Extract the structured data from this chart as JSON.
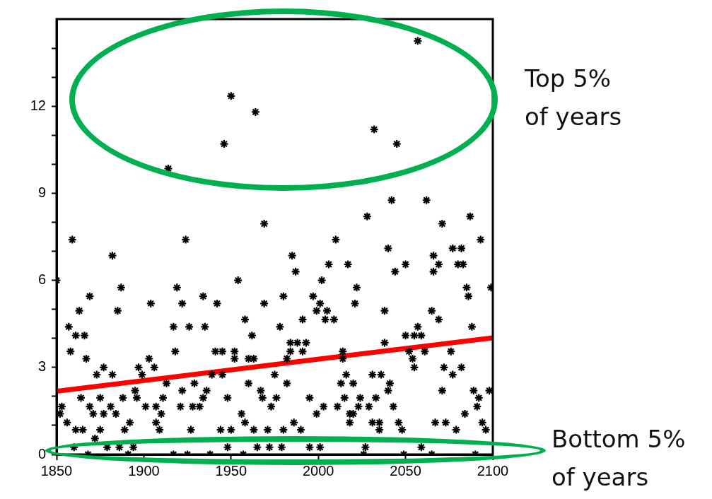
{
  "chart_data": {
    "type": "scatter",
    "xlim": [
      1850,
      2100
    ],
    "xticks": [
      1850,
      1900,
      1950,
      2000,
      2050,
      {
        "value": 2100,
        "label": "2100"
      }
    ],
    "ylim": [
      0,
      15
    ],
    "yticks": [
      0,
      {
        "value": 1,
        "label": null
      },
      {
        "value": 2,
        "label": null
      },
      3,
      {
        "value": 4,
        "label": null
      },
      {
        "value": 5,
        "label": null
      },
      6,
      {
        "value": 7,
        "label": null
      },
      {
        "value": 8,
        "label": null
      },
      9,
      {
        "value": 10,
        "label": null
      },
      {
        "value": 11,
        "label": null
      },
      12,
      {
        "value": 13,
        "label": null
      },
      {
        "value": 14,
        "label": null
      }
    ],
    "grid": false,
    "legend": false,
    "annotations": [
      "Top 5% of years",
      "Bottom 5% of years"
    ],
    "series": [
      {
        "type": "scatter",
        "marker": "cross",
        "color": "#000000",
        "x": [
          1914,
          1946,
          1950,
          1964,
          2032,
          2045,
          2057,
          2042,
          2062,
          2087,
          2028,
          1969,
          1859,
          1924,
          2010,
          2093,
          2071,
          2077,
          2082,
          1882,
          1985,
          2040,
          2066,
          1987,
          2006,
          2017,
          2050,
          2044,
          2080,
          2083,
          2066,
          1887,
          1919,
          1869,
          1934,
          1980,
          1954,
          1942,
          2002,
          1969,
          1997,
          2001,
          1999,
          2005,
          2004,
          2009,
          1991,
          1958,
          1962,
          1978,
          1935,
          1941,
          1945,
          1952,
          1952,
          1960,
          1963,
          1984,
          1988,
          1993,
          1984,
          1991,
          1982,
          2014,
          2014,
          1939,
          1945,
          1936,
          1934,
          1948,
          1960,
          1967,
          1968,
          1976,
          1973,
          1975,
          1982,
          1995,
          2003,
          1999,
          2011,
          2015,
          2013,
          2016,
          2018,
          2018,
          1956,
          1958,
          1944,
          1950,
          1963,
          1971,
          1980,
          1986,
          1990,
          1948,
          1965,
          1972,
          1979,
          1995,
          2001,
          1938,
          1957,
          1885,
          1863,
          1857,
          1861,
          1866,
          1858,
          1867,
          1904,
          1922,
          1917,
          1926,
          1918,
          1877,
          1873,
          1882,
          1897,
          1899,
          1903,
          1906,
          1913,
          1929,
          1895,
          1922,
          1853,
          1852,
          1856,
          1864,
          1875,
          1869,
          1871,
          1877,
          1884,
          1881,
          1888,
          1896,
          1901,
          1907,
          1911,
          1910,
          1907,
          1921,
          1928,
          1932,
          1861,
          1865,
          1875,
          1889,
          1892,
          1909,
          1927,
          1872,
          1879,
          1886,
          1894,
          1860,
          1868,
          1891,
          1917,
          1925,
          2022,
          2085,
          2086,
          2099,
          2021,
          2038,
          2065,
          2069,
          2088,
          2057,
          2050,
          2055,
          2059,
          2038,
          2052,
          2054,
          2055,
          2061,
          2076,
          2072,
          2082,
          2077,
          2031,
          2036,
          2041,
          2040,
          2020,
          2071,
          2089,
          2092,
          2091,
          2098,
          2024,
          2033,
          2023,
          2029,
          2043,
          2020,
          2084,
          2031,
          2035,
          2035,
          2046,
          2048,
          2067,
          2073,
          2079,
          2094,
          2096,
          2027,
          2059,
          2026,
          2049,
          2065,
          2090,
          2069,
          1850
        ],
        "values": [
          9.85,
          10.7,
          12.35,
          11.8,
          11.2,
          10.7,
          14.25,
          8.76,
          8.76,
          8.2,
          8.2,
          7.95,
          7.4,
          7.4,
          7.4,
          7.4,
          7.95,
          7.1,
          7.1,
          6.85,
          6.85,
          7.1,
          6.85,
          6.3,
          6.55,
          6.55,
          6.55,
          6.3,
          6.55,
          6.55,
          6.3,
          5.75,
          5.75,
          5.45,
          5.45,
          5.45,
          6.0,
          5.2,
          6.0,
          5.2,
          5.45,
          5.2,
          4.95,
          4.95,
          4.65,
          4.65,
          4.65,
          4.65,
          4.1,
          4.4,
          4.4,
          3.55,
          3.55,
          3.55,
          3.3,
          3.3,
          3.3,
          3.85,
          3.85,
          3.85,
          3.55,
          3.55,
          3.3,
          3.55,
          3.3,
          2.75,
          2.75,
          2.2,
          1.95,
          1.95,
          2.45,
          2.2,
          1.95,
          1.95,
          1.65,
          2.75,
          2.45,
          1.95,
          1.65,
          1.4,
          1.65,
          1.95,
          2.45,
          2.75,
          1.4,
          1.1,
          1.4,
          1.1,
          0.85,
          0.85,
          0.85,
          0.85,
          0.85,
          1.1,
          0.85,
          0.25,
          0.25,
          0.25,
          0.25,
          0.25,
          0.25,
          0,
          0,
          4.95,
          4.95,
          4.4,
          4.1,
          4.1,
          3.55,
          3.3,
          5.2,
          5.2,
          4.4,
          4.4,
          3.55,
          3.0,
          2.75,
          2.75,
          3.0,
          2.75,
          3.3,
          3.0,
          2.45,
          2.45,
          2.2,
          2.2,
          1.65,
          1.4,
          1.1,
          1.95,
          1.95,
          1.65,
          1.4,
          1.4,
          1.4,
          1.65,
          1.95,
          1.95,
          1.65,
          1.65,
          1.95,
          1.4,
          1.1,
          1.65,
          1.65,
          1.65,
          0.85,
          0.85,
          0.85,
          0.85,
          1.1,
          0.85,
          0.85,
          0.55,
          0.25,
          0.25,
          0.25,
          0.25,
          0,
          0,
          0,
          0,
          5.75,
          5.75,
          5.45,
          5.75,
          5.2,
          4.95,
          4.95,
          4.65,
          4.4,
          4.4,
          4.1,
          4.1,
          4.1,
          3.85,
          3.55,
          3.3,
          3.0,
          3.55,
          3.55,
          3.0,
          3.0,
          2.75,
          2.75,
          2.75,
          2.45,
          2.2,
          2.45,
          2.2,
          2.2,
          1.95,
          1.65,
          2.2,
          1.95,
          1.95,
          1.65,
          1.65,
          1.65,
          1.4,
          1.4,
          1.1,
          1.1,
          0.85,
          1.1,
          0.85,
          1.1,
          1.1,
          0.85,
          1.1,
          0.85,
          0.25,
          0.25,
          0,
          0,
          0,
          0,
          6.55,
          6.0
        ]
      },
      {
        "type": "line",
        "marker": "none",
        "line_style": "solid",
        "color": "#ff0000",
        "x": [
          1850,
          2100
        ],
        "values": [
          2.18,
          4.02
        ]
      }
    ]
  }
}
